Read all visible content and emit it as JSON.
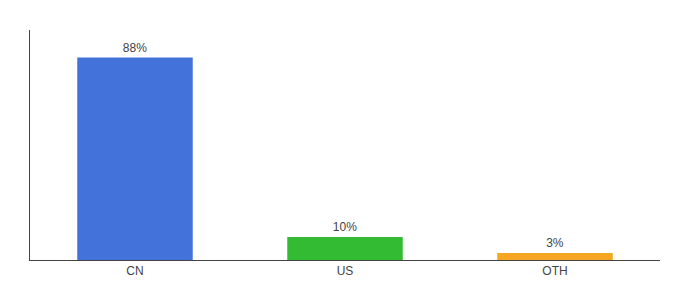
{
  "chart_data": {
    "type": "bar",
    "categories": [
      "CN",
      "US",
      "OTH"
    ],
    "values": [
      88,
      10,
      3
    ],
    "value_labels": [
      "88%",
      "10%",
      "3%"
    ],
    "data_labels": true,
    "colors": [
      "#4472db",
      "#33bb33",
      "#f5a623"
    ],
    "ylim": [
      0,
      100
    ],
    "yticks": [],
    "tick_labels": "x",
    "grid": false
  }
}
